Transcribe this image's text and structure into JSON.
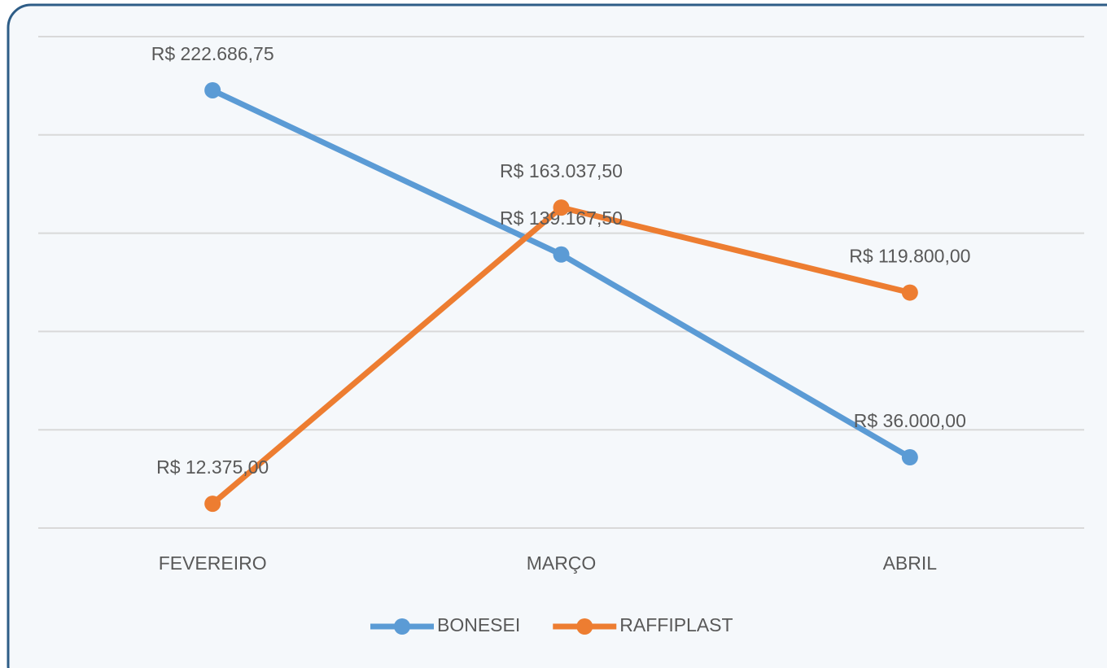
{
  "chart_data": {
    "type": "line",
    "categories": [
      "FEVEREIRO",
      "MARÇO",
      "ABRIL"
    ],
    "series": [
      {
        "name": "BONESEI",
        "color": "#5b9bd5",
        "values": [
          222686.75,
          139167.5,
          36000
        ],
        "value_labels": [
          "R$ 222.686,75",
          "R$ 139.167,50",
          "R$ 36.000,00"
        ]
      },
      {
        "name": "RAFFIPLAST",
        "color": "#ed7d31",
        "values": [
          12375,
          163037.5,
          119800
        ],
        "value_labels": [
          "R$ 12.375,00",
          "R$ 163.037,50",
          "R$ 119.800,00"
        ]
      }
    ],
    "ylim": [
      0,
      250000
    ],
    "yticks": [
      0,
      50000,
      100000,
      150000,
      200000,
      250000
    ],
    "grid": true,
    "legend": "bottom"
  }
}
